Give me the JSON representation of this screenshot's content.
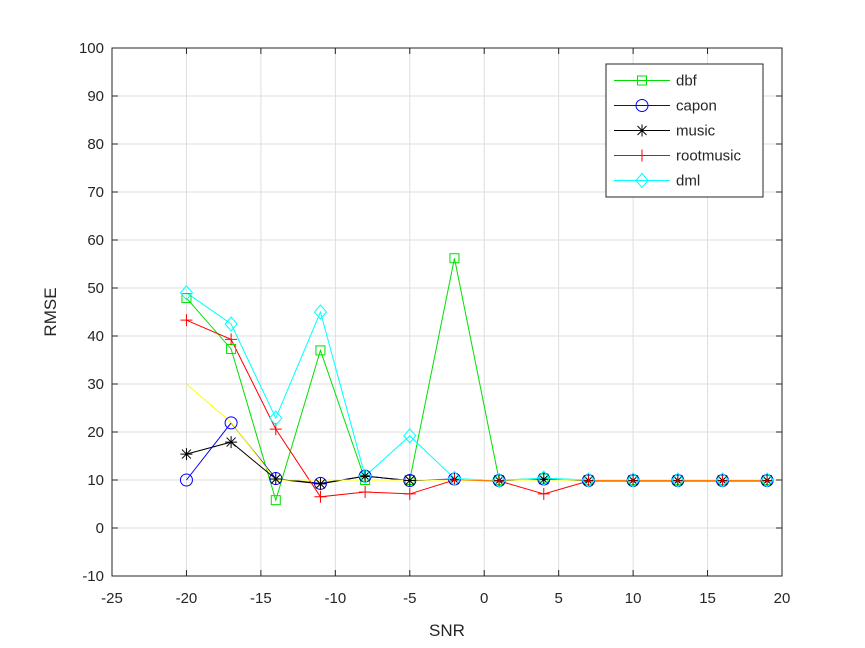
{
  "chart_data": {
    "type": "line",
    "x_label": "SNR",
    "y_label": "RMSE",
    "x": [
      -20,
      -17,
      -14,
      -11,
      -8,
      -5,
      -2,
      1,
      4,
      7,
      10,
      13,
      16,
      19
    ],
    "xlim": [
      -25,
      20
    ],
    "xticks": [
      -25,
      -20,
      -15,
      -10,
      -5,
      0,
      5,
      10,
      15,
      20
    ],
    "ylim": [
      -10,
      100
    ],
    "yticks": [
      -10,
      0,
      10,
      20,
      30,
      40,
      50,
      60,
      70,
      80,
      90,
      100
    ],
    "grid": true,
    "legend": "northeast",
    "series": [
      {
        "name": "dbf",
        "color": "#00e000",
        "marker": "square",
        "values": [
          47.9,
          37.3,
          5.8,
          37,
          10,
          10,
          56.2,
          10,
          10.3,
          10,
          10,
          10,
          10,
          10
        ]
      },
      {
        "name": "capon",
        "color": "#0000ff",
        "marker": "circle",
        "values": [
          10,
          21.9,
          10.3,
          9.3,
          10.8,
          9.9,
          10.2,
          9.9,
          10.2,
          9.9,
          9.9,
          9.9,
          9.9,
          9.9
        ]
      },
      {
        "name": "music",
        "color": "#000000",
        "marker": "star",
        "values": [
          15.4,
          17.9,
          10.2,
          9.2,
          10.8,
          9.9,
          10.1,
          9.9,
          10.1,
          9.9,
          9.9,
          9.9,
          9.9,
          9.9
        ]
      },
      {
        "name": "rootmusic",
        "color": "#ff0000",
        "marker": "plus",
        "values": [
          43.3,
          39.3,
          20.6,
          6.5,
          7.5,
          7.1,
          10,
          9.8,
          7.1,
          9.8,
          9.8,
          9.8,
          9.8,
          9.8
        ]
      },
      {
        "name": "dml",
        "color": "#00ffff",
        "marker": "diamond",
        "values": [
          49,
          42.5,
          22.9,
          45,
          10.8,
          19.2,
          10.3,
          9.9,
          10.4,
          10,
          10,
          10,
          10,
          10
        ]
      },
      {
        "color": "#ffff00",
        "marker": "none",
        "values": [
          30,
          22,
          10,
          10,
          10,
          10,
          10,
          10,
          10,
          10,
          10,
          10,
          10,
          10
        ]
      }
    ]
  }
}
